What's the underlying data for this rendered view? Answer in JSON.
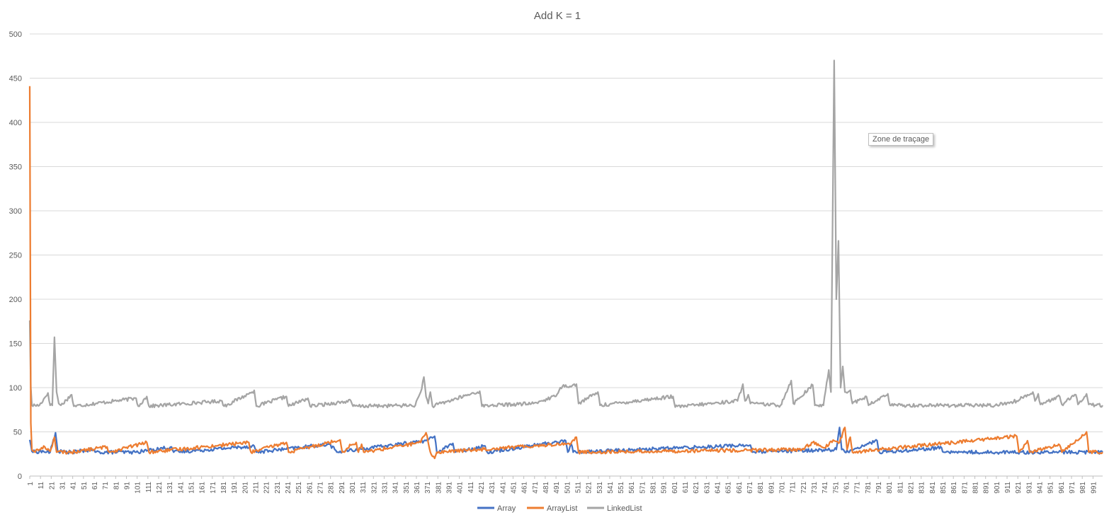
{
  "tooltip": "Zone de traçage",
  "chart_data": {
    "type": "line",
    "title": "Add K = 1",
    "xlabel": "",
    "ylabel": "",
    "ylim": [
      0,
      500
    ],
    "yticks": [
      0,
      50,
      100,
      150,
      200,
      250,
      300,
      350,
      400,
      450,
      500
    ],
    "x_range": [
      1,
      1000
    ],
    "xtick_start": 1,
    "xtick_step": 10,
    "grid": true,
    "legend_position": "bottom",
    "colors": {
      "Array": "#4472C4",
      "ArrayList": "#ED7D31",
      "LinkedList": "#A5A5A5",
      "grid": "#D9D9D9",
      "text": "#595959"
    },
    "series": [
      {
        "name": "Array",
        "color": "#4472C4",
        "baseline": 26,
        "points": [
          [
            1,
            41
          ],
          [
            2,
            35
          ],
          [
            3,
            28
          ],
          [
            6,
            27
          ],
          [
            10,
            28
          ],
          [
            20,
            27
          ],
          [
            25,
            49
          ],
          [
            27,
            28
          ],
          [
            40,
            27
          ],
          [
            60,
            30
          ],
          [
            62,
            27
          ],
          [
            100,
            27
          ],
          [
            133,
            33
          ],
          [
            135,
            27
          ],
          [
            210,
            34
          ],
          [
            212,
            27
          ],
          [
            280,
            36
          ],
          [
            285,
            30
          ],
          [
            287,
            27
          ],
          [
            370,
            40
          ],
          [
            378,
            45
          ],
          [
            380,
            27
          ],
          [
            395,
            37
          ],
          [
            397,
            27
          ],
          [
            425,
            34
          ],
          [
            427,
            27
          ],
          [
            500,
            40
          ],
          [
            502,
            27
          ],
          [
            505,
            37
          ],
          [
            507,
            27
          ],
          [
            668,
            35
          ],
          [
            672,
            35
          ],
          [
            674,
            27
          ],
          [
            752,
            30
          ],
          [
            755,
            55
          ],
          [
            757,
            30
          ],
          [
            760,
            27
          ],
          [
            790,
            40
          ],
          [
            792,
            27
          ],
          [
            850,
            32
          ],
          [
            852,
            27
          ],
          [
            1000,
            27
          ]
        ]
      },
      {
        "name": "ArrayList",
        "color": "#ED7D31",
        "baseline": 27,
        "points": [
          [
            1,
            441
          ],
          [
            2,
            60
          ],
          [
            3,
            30
          ],
          [
            5,
            28
          ],
          [
            10,
            30
          ],
          [
            15,
            33
          ],
          [
            20,
            28
          ],
          [
            24,
            44
          ],
          [
            26,
            27
          ],
          [
            40,
            27
          ],
          [
            73,
            33
          ],
          [
            75,
            27
          ],
          [
            110,
            38
          ],
          [
            112,
            27
          ],
          [
            205,
            38
          ],
          [
            207,
            27
          ],
          [
            240,
            38
          ],
          [
            242,
            27
          ],
          [
            290,
            41
          ],
          [
            292,
            27
          ],
          [
            300,
            35
          ],
          [
            305,
            38
          ],
          [
            307,
            27
          ],
          [
            310,
            36
          ],
          [
            312,
            27
          ],
          [
            365,
            38
          ],
          [
            368,
            45
          ],
          [
            370,
            49
          ],
          [
            372,
            38
          ],
          [
            374,
            27
          ],
          [
            378,
            20
          ],
          [
            380,
            27
          ],
          [
            505,
            37
          ],
          [
            510,
            44
          ],
          [
            512,
            27
          ],
          [
            720,
            30
          ],
          [
            730,
            38
          ],
          [
            740,
            32
          ],
          [
            750,
            40
          ],
          [
            755,
            38
          ],
          [
            760,
            55
          ],
          [
            762,
            30
          ],
          [
            765,
            44
          ],
          [
            767,
            27
          ],
          [
            920,
            45
          ],
          [
            922,
            27
          ],
          [
            930,
            40
          ],
          [
            932,
            27
          ],
          [
            960,
            35
          ],
          [
            962,
            27
          ],
          [
            985,
            50
          ],
          [
            987,
            27
          ],
          [
            1000,
            27
          ]
        ]
      },
      {
        "name": "LinkedList",
        "color": "#A5A5A5",
        "baseline": 79,
        "points": [
          [
            1,
            176
          ],
          [
            2,
            100
          ],
          [
            3,
            80
          ],
          [
            10,
            80
          ],
          [
            18,
            94
          ],
          [
            20,
            80
          ],
          [
            22,
            80
          ],
          [
            24,
            157
          ],
          [
            26,
            95
          ],
          [
            28,
            82
          ],
          [
            30,
            80
          ],
          [
            40,
            92
          ],
          [
            42,
            79
          ],
          [
            100,
            88
          ],
          [
            102,
            79
          ],
          [
            110,
            90
          ],
          [
            112,
            79
          ],
          [
            180,
            85
          ],
          [
            182,
            79
          ],
          [
            205,
            93
          ],
          [
            208,
            95
          ],
          [
            210,
            97
          ],
          [
            212,
            79
          ],
          [
            240,
            90
          ],
          [
            242,
            79
          ],
          [
            260,
            88
          ],
          [
            262,
            79
          ],
          [
            300,
            85
          ],
          [
            302,
            79
          ],
          [
            360,
            80
          ],
          [
            365,
            95
          ],
          [
            368,
            112
          ],
          [
            370,
            90
          ],
          [
            372,
            82
          ],
          [
            374,
            95
          ],
          [
            376,
            79
          ],
          [
            420,
            96
          ],
          [
            422,
            79
          ],
          [
            430,
            80
          ],
          [
            470,
            82
          ],
          [
            480,
            86
          ],
          [
            490,
            90
          ],
          [
            495,
            100
          ],
          [
            500,
            103
          ],
          [
            505,
            101
          ],
          [
            510,
            104
          ],
          [
            512,
            82
          ],
          [
            530,
            95
          ],
          [
            532,
            80
          ],
          [
            600,
            90
          ],
          [
            602,
            78
          ],
          [
            660,
            85
          ],
          [
            665,
            104
          ],
          [
            667,
            85
          ],
          [
            670,
            92
          ],
          [
            672,
            82
          ],
          [
            700,
            80
          ],
          [
            710,
            108
          ],
          [
            712,
            82
          ],
          [
            730,
            103
          ],
          [
            732,
            80
          ],
          [
            740,
            80
          ],
          [
            745,
            120
          ],
          [
            747,
            95
          ],
          [
            750,
            470
          ],
          [
            752,
            200
          ],
          [
            754,
            266
          ],
          [
            756,
            100
          ],
          [
            758,
            124
          ],
          [
            760,
            95
          ],
          [
            765,
            97
          ],
          [
            767,
            82
          ],
          [
            780,
            90
          ],
          [
            782,
            80
          ],
          [
            800,
            93
          ],
          [
            802,
            80
          ],
          [
            900,
            80
          ],
          [
            920,
            85
          ],
          [
            930,
            92
          ],
          [
            935,
            95
          ],
          [
            937,
            85
          ],
          [
            940,
            93
          ],
          [
            942,
            81
          ],
          [
            960,
            90
          ],
          [
            962,
            81
          ],
          [
            975,
            92
          ],
          [
            977,
            81
          ],
          [
            985,
            93
          ],
          [
            987,
            81
          ],
          [
            1000,
            80
          ]
        ]
      }
    ]
  }
}
